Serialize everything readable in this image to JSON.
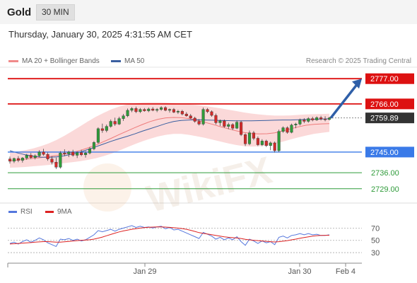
{
  "header": {
    "symbol": "Gold",
    "timeframe": "30 MIN"
  },
  "datetime": "Thursday, January 30, 2025 4:31:55 AM CET",
  "legend": {
    "ma20": {
      "label": "MA 20 + Bollinger Bands",
      "color": "#f08a8a"
    },
    "ma50": {
      "label": "MA 50",
      "color": "#3a5fa0"
    },
    "rsi": {
      "label": "RSI",
      "color": "#5577dd"
    },
    "ma9": {
      "label": "9MA",
      "color": "#dd2222"
    }
  },
  "credit": "Research © 2025 Trading Central",
  "watermark": "WikiFX",
  "chart_data": [
    {
      "type": "candlestick",
      "ylim": [
        2724,
        2782
      ],
      "levels": [
        {
          "value": 2777.0,
          "label": "2777.00",
          "style": "resistance",
          "color": "#dd1111"
        },
        {
          "value": 2766.0,
          "label": "2766.00",
          "style": "resistance",
          "color": "#dd1111"
        },
        {
          "value": 2759.89,
          "label": "2759.89",
          "style": "last-price",
          "color": "#333333"
        },
        {
          "value": 2745.0,
          "label": "2745.00",
          "style": "pivot",
          "color": "#3a7ae8"
        },
        {
          "value": 2736.0,
          "label": "2736.00",
          "style": "support",
          "color": "#2f9b3a"
        },
        {
          "value": 2729.0,
          "label": "2729.00",
          "style": "support",
          "color": "#2f9b3a"
        }
      ],
      "arrow": {
        "from": 2759.89,
        "to": 2777,
        "direction": "up",
        "color": "#2f5fa8"
      },
      "x_ticks": [
        "Jan 29",
        "Jan 30",
        "Feb 4"
      ],
      "candles": [
        [
          2742.0,
          2743.0,
          2740.0,
          2741.0
        ],
        [
          2741.0,
          2742.6,
          2740.2,
          2742.2
        ],
        [
          2742.2,
          2743.2,
          2740.6,
          2741.4
        ],
        [
          2741.4,
          2742.8,
          2740.4,
          2742.4
        ],
        [
          2742.4,
          2744.2,
          2741.6,
          2743.6
        ],
        [
          2743.6,
          2744.6,
          2742.0,
          2742.6
        ],
        [
          2742.6,
          2744.0,
          2741.8,
          2743.4
        ],
        [
          2743.4,
          2745.8,
          2742.8,
          2745.0
        ],
        [
          2745.0,
          2746.4,
          2743.4,
          2744.0
        ],
        [
          2744.0,
          2744.8,
          2741.2,
          2742.0
        ],
        [
          2742.0,
          2743.2,
          2739.6,
          2740.6
        ],
        [
          2740.6,
          2742.6,
          2737.6,
          2738.4
        ],
        [
          2738.4,
          2745.4,
          2737.8,
          2744.6
        ],
        [
          2744.6,
          2746.2,
          2743.2,
          2744.2
        ],
        [
          2744.2,
          2745.6,
          2742.8,
          2745.0
        ],
        [
          2745.0,
          2746.0,
          2743.0,
          2743.6
        ],
        [
          2743.6,
          2745.2,
          2742.4,
          2744.8
        ],
        [
          2744.8,
          2746.0,
          2743.2,
          2743.8
        ],
        [
          2743.8,
          2745.4,
          2742.6,
          2744.6
        ],
        [
          2744.6,
          2747.2,
          2744.0,
          2746.4
        ],
        [
          2746.4,
          2749.8,
          2745.8,
          2749.2
        ],
        [
          2749.2,
          2755.8,
          2748.6,
          2755.2
        ],
        [
          2755.2,
          2757.4,
          2753.4,
          2754.4
        ],
        [
          2754.4,
          2757.0,
          2753.6,
          2756.2
        ],
        [
          2756.2,
          2759.2,
          2755.6,
          2758.4
        ],
        [
          2758.4,
          2760.0,
          2756.4,
          2757.2
        ],
        [
          2757.2,
          2760.4,
          2756.8,
          2759.6
        ],
        [
          2759.6,
          2761.6,
          2758.6,
          2760.8
        ],
        [
          2760.8,
          2764.0,
          2760.2,
          2763.2
        ],
        [
          2763.2,
          2764.6,
          2762.4,
          2764.0
        ],
        [
          2764.0,
          2764.8,
          2762.0,
          2762.6
        ],
        [
          2762.6,
          2764.2,
          2762.0,
          2763.6
        ],
        [
          2763.6,
          2764.2,
          2762.6,
          2763.0
        ],
        [
          2763.0,
          2764.4,
          2762.4,
          2763.8
        ],
        [
          2763.8,
          2764.6,
          2762.8,
          2763.2
        ],
        [
          2763.2,
          2764.2,
          2762.4,
          2763.6
        ],
        [
          2763.6,
          2765.0,
          2763.0,
          2764.4
        ],
        [
          2764.4,
          2765.0,
          2762.8,
          2763.2
        ],
        [
          2763.2,
          2764.0,
          2762.2,
          2763.6
        ],
        [
          2763.6,
          2764.2,
          2762.0,
          2762.4
        ],
        [
          2762.4,
          2763.4,
          2761.6,
          2762.8
        ],
        [
          2762.8,
          2763.4,
          2761.0,
          2761.6
        ],
        [
          2761.6,
          2762.4,
          2760.4,
          2760.8
        ],
        [
          2760.8,
          2761.6,
          2759.4,
          2759.8
        ],
        [
          2759.8,
          2760.4,
          2757.8,
          2758.4
        ],
        [
          2758.4,
          2759.4,
          2756.6,
          2757.2
        ],
        [
          2757.2,
          2764.4,
          2756.6,
          2763.6
        ],
        [
          2763.6,
          2764.2,
          2762.0,
          2762.6
        ],
        [
          2762.6,
          2763.2,
          2760.4,
          2761.0
        ],
        [
          2761.0,
          2761.8,
          2757.0,
          2757.8
        ],
        [
          2757.8,
          2759.2,
          2756.4,
          2758.6
        ],
        [
          2758.6,
          2759.2,
          2755.6,
          2756.2
        ],
        [
          2756.2,
          2757.8,
          2755.0,
          2757.0
        ],
        [
          2757.0,
          2757.6,
          2754.6,
          2755.4
        ],
        [
          2755.4,
          2758.8,
          2755.0,
          2758.0
        ],
        [
          2758.0,
          2758.6,
          2752.0,
          2752.6
        ],
        [
          2752.6,
          2753.2,
          2747.6,
          2748.6
        ],
        [
          2748.6,
          2754.4,
          2748.0,
          2753.4
        ],
        [
          2753.4,
          2754.2,
          2750.2,
          2751.0
        ],
        [
          2751.0,
          2751.8,
          2747.6,
          2748.2
        ],
        [
          2748.2,
          2750.6,
          2747.6,
          2749.8
        ],
        [
          2749.8,
          2750.4,
          2747.2,
          2747.8
        ],
        [
          2747.8,
          2749.6,
          2745.8,
          2749.0
        ],
        [
          2749.0,
          2749.6,
          2744.8,
          2745.6
        ],
        [
          2745.6,
          2754.8,
          2745.0,
          2754.0
        ],
        [
          2754.0,
          2756.2,
          2753.4,
          2755.6
        ],
        [
          2755.6,
          2756.2,
          2753.0,
          2753.6
        ],
        [
          2753.6,
          2757.4,
          2753.2,
          2756.8
        ],
        [
          2756.8,
          2757.8,
          2755.4,
          2757.2
        ],
        [
          2757.2,
          2759.6,
          2756.6,
          2759.0
        ],
        [
          2759.0,
          2759.8,
          2757.6,
          2758.4
        ],
        [
          2758.4,
          2760.2,
          2757.8,
          2759.6
        ],
        [
          2759.6,
          2760.4,
          2758.4,
          2759.0
        ],
        [
          2759.0,
          2760.6,
          2758.6,
          2760.0
        ],
        [
          2760.0,
          2760.8,
          2758.8,
          2759.4
        ],
        [
          2759.4,
          2760.6,
          2758.4,
          2759.2
        ],
        [
          2759.2,
          2760.4,
          2758.8,
          2759.9
        ]
      ],
      "ma20": [
        2741.2,
        2741.5,
        2741.9,
        2742.3,
        2742.6,
        2743.0,
        2743.5,
        2744.1,
        2744.8,
        2745.7,
        2746.8,
        2748.0,
        2749.5,
        2751.0,
        2752.6,
        2754.1,
        2755.6,
        2757.0,
        2758.3,
        2759.3,
        2759.9,
        2760.1,
        2760.0,
        2759.6,
        2758.9,
        2758.0,
        2757.1,
        2756.1,
        2755.2,
        2754.3,
        2753.6,
        2753.1,
        2752.9,
        2753.0,
        2753.4,
        2754.2,
        2755.1,
        2756.0,
        2756.7,
        2757.1,
        2757.3,
        2757.4
      ],
      "ma50": [
        2745.6,
        2744.6,
        2743.8,
        2743.2,
        2742.8,
        2742.7,
        2742.9,
        2743.4,
        2744.1,
        2745.0,
        2746.1,
        2747.3,
        2748.5,
        2749.7,
        2750.8,
        2751.8,
        2752.9,
        2754.1,
        2755.2,
        2756.3,
        2757.4,
        2758.3,
        2758.8,
        2759.0,
        2759.1,
        2759.0,
        2758.9,
        2758.8,
        2758.7,
        2758.6,
        2758.6,
        2758.6,
        2758.7,
        2758.8,
        2758.9,
        2759.0,
        2759.0,
        2759.1,
        2759.2,
        2759.3,
        2759.4,
        2759.5
      ],
      "bb_upper": [
        2744.8,
        2745.2,
        2745.8,
        2746.6,
        2747.6,
        2748.8,
        2750.3,
        2752.1,
        2754.1,
        2756.2,
        2758.3,
        2760.3,
        2762.0,
        2763.6,
        2764.8,
        2765.7,
        2766.3,
        2766.6,
        2766.7,
        2766.7,
        2766.6,
        2766.4,
        2766.1,
        2765.8,
        2765.5,
        2765.1,
        2764.6,
        2764.1,
        2763.5,
        2762.9,
        2762.3,
        2761.8,
        2761.4,
        2761.1,
        2760.9,
        2760.9,
        2761.0,
        2761.2,
        2761.4,
        2761.5,
        2761.6,
        2761.7
      ],
      "bb_lower": [
        2738.2,
        2738.3,
        2738.5,
        2738.8,
        2739.1,
        2739.4,
        2739.8,
        2740.2,
        2740.6,
        2741.0,
        2741.6,
        2742.3,
        2743.2,
        2744.3,
        2745.6,
        2747.0,
        2748.4,
        2749.7,
        2750.8,
        2751.8,
        2752.5,
        2752.9,
        2752.9,
        2752.5,
        2751.9,
        2751.2,
        2750.4,
        2749.6,
        2748.8,
        2748.1,
        2747.6,
        2747.4,
        2747.5,
        2747.9,
        2748.6,
        2749.5,
        2750.5,
        2751.4,
        2752.2,
        2752.9,
        2753.4,
        2753.8
      ]
    },
    {
      "type": "line",
      "title": "RSI",
      "ylim": [
        22,
        82
      ],
      "yticks": [
        30,
        50,
        70
      ],
      "series": [
        {
          "name": "RSI",
          "color": "#5577dd",
          "values": [
            45,
            47,
            44,
            48,
            51,
            47,
            50,
            54,
            51,
            46,
            43,
            40,
            52,
            51,
            53,
            50,
            52,
            49,
            51,
            55,
            59,
            66,
            64,
            66,
            68,
            65,
            68,
            70,
            72,
            74,
            71,
            73,
            71,
            72,
            70,
            72,
            73,
            69,
            71,
            67,
            68,
            65,
            62,
            59,
            56,
            53,
            63,
            60,
            57,
            52,
            55,
            51,
            54,
            51,
            56,
            48,
            42,
            52,
            49,
            45,
            49,
            46,
            48,
            43,
            55,
            57,
            54,
            58,
            59,
            61,
            59,
            61,
            59,
            60,
            58,
            58,
            59
          ]
        },
        {
          "name": "9MA",
          "color": "#dd2222",
          "values": [
            44,
            44.5,
            45,
            45.5,
            46,
            46.4,
            47,
            47.5,
            48,
            48,
            47.5,
            47,
            47,
            47.6,
            48.3,
            49,
            49.6,
            50.2,
            50.6,
            51,
            52,
            53.6,
            55.4,
            57.5,
            59.6,
            61.8,
            63.8,
            65.4,
            66.8,
            68,
            69,
            70,
            70.8,
            71.4,
            71.6,
            71.8,
            71.8,
            71.6,
            71.2,
            70.6,
            70,
            69.2,
            68,
            66.4,
            64.6,
            62.6,
            61.4,
            60.4,
            59.2,
            58,
            56.8,
            55.8,
            55,
            54.4,
            53.8,
            53,
            51.8,
            50.8,
            50.2,
            49.6,
            49,
            48.4,
            47.8,
            47.4,
            47.8,
            48.6,
            49.6,
            50.8,
            52,
            53.4,
            54.6,
            55.8,
            56.8,
            57.6,
            58,
            58.2,
            58.4
          ]
        }
      ]
    }
  ]
}
